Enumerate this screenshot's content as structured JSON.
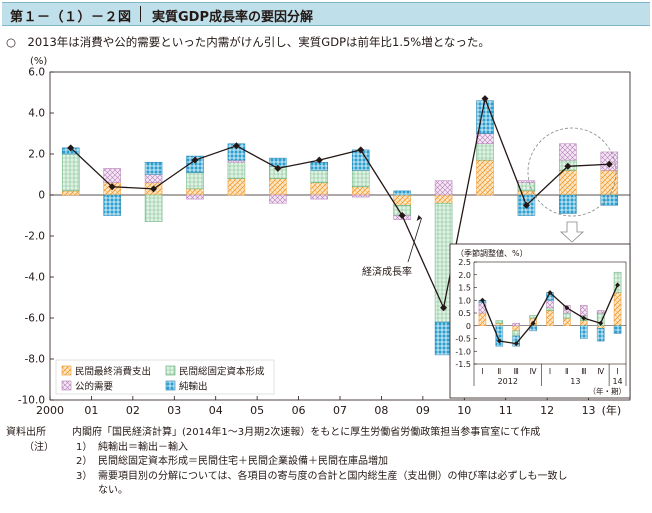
{
  "header": {
    "figure_number": "第１－（１）－２図",
    "title": "実質GDP成長率の要因分解"
  },
  "lead_text": "○　2013年は消費や公的需要といった内需がけん引し、実質GDPは前年比1.5%増となった。",
  "chart_data": [
    {
      "type": "bar",
      "subtype": "stacked-bar-with-line",
      "ylabel": "(%)",
      "xlabel": "(年)",
      "ylim": [
        -10.0,
        6.0
      ],
      "yticks": [
        "6.0",
        "4.0",
        "2.0",
        "0",
        "-2.0",
        "-4.0",
        "-6.0",
        "-8.0",
        "-10.0"
      ],
      "categories": [
        "2000",
        "01",
        "02",
        "03",
        "04",
        "05",
        "06",
        "07",
        "08",
        "09",
        "10",
        "11",
        "12",
        "13"
      ],
      "grid": false,
      "legend_position": "bottom-left",
      "series": [
        {
          "name": "民間最終消費支出",
          "color": "#f29a2e",
          "values": [
            0.2,
            0.6,
            0.6,
            0.3,
            0.8,
            0.8,
            0.6,
            0.4,
            -0.5,
            -0.4,
            1.7,
            0.2,
            1.2,
            1.2
          ]
        },
        {
          "name": "民間総固定資本形成",
          "color": "#5aaa6e",
          "values": [
            1.8,
            0.0,
            -1.3,
            0.8,
            0.8,
            0.6,
            0.6,
            0.8,
            -0.5,
            -5.8,
            0.8,
            0.4,
            0.5,
            0.0
          ]
        },
        {
          "name": "公的需要",
          "color": "#b57fb8",
          "values": [
            0.0,
            0.7,
            0.4,
            -0.2,
            0.1,
            -0.4,
            -0.2,
            -0.1,
            -0.2,
            0.7,
            0.5,
            0.1,
            0.8,
            0.9
          ]
        },
        {
          "name": "純輸出",
          "color": "#2a9fd0",
          "values": [
            0.3,
            -1.0,
            0.6,
            0.8,
            0.8,
            0.4,
            0.4,
            1.0,
            0.2,
            -1.6,
            1.6,
            -1.0,
            -0.9,
            -0.5
          ]
        }
      ],
      "line": {
        "name": "経済成長率",
        "values": [
          2.3,
          0.4,
          0.3,
          1.7,
          2.4,
          1.3,
          1.7,
          2.2,
          -1.0,
          -5.5,
          4.7,
          -0.5,
          1.4,
          1.5
        ]
      }
    },
    {
      "type": "bar",
      "subtype": "stacked-bar-with-line",
      "title": "（季節調整値、%）",
      "ylim": [
        -1.5,
        2.5
      ],
      "yticks": [
        "2.5",
        "2.0",
        "1.5",
        "1.0",
        "0.5",
        "0",
        "-0.5",
        "-1.0",
        "-1.5"
      ],
      "categories": [
        "Ⅰ",
        "Ⅱ",
        "Ⅲ",
        "Ⅳ",
        "Ⅰ",
        "Ⅱ",
        "Ⅲ",
        "Ⅳ",
        "Ⅰ"
      ],
      "year_labels": [
        "2012",
        "13",
        "14"
      ],
      "xlabel": "（年・期）",
      "series": [
        {
          "name": "民間最終消費支出",
          "values": [
            0.5,
            0.1,
            -0.2,
            0.3,
            0.6,
            0.3,
            0.2,
            -0.1,
            1.3
          ]
        },
        {
          "name": "民間総固定資本形成",
          "values": [
            0.0,
            0.1,
            -0.2,
            0.1,
            0.1,
            0.2,
            0.2,
            0.5,
            0.8
          ]
        },
        {
          "name": "公的需要",
          "values": [
            0.4,
            0.0,
            0.1,
            0.0,
            0.3,
            0.3,
            0.4,
            0.1,
            0.0
          ]
        },
        {
          "name": "純輸出",
          "values": [
            0.1,
            -0.8,
            -0.4,
            -0.2,
            0.3,
            0.0,
            -0.5,
            -0.5,
            -0.3
          ]
        }
      ],
      "line": {
        "name": "経済成長率",
        "values": [
          1.0,
          -0.6,
          -0.7,
          0.1,
          1.3,
          0.7,
          0.3,
          0.1,
          1.6
        ]
      }
    }
  ],
  "notes": [
    {
      "key": "資料出所",
      "text": "内閣府「国民経済計算」(2014年1～3月期2次速報）をもとに厚生労働省労働政策担当参事官室にて作成"
    },
    {
      "key": "（注）",
      "num": "1）",
      "text": "純輸出＝輸出－輸入"
    },
    {
      "key": "",
      "num": "2）",
      "text": "民間総固定資本形成＝民間住宅＋民間企業設備＋民間在庫品増加"
    },
    {
      "key": "",
      "num": "3）",
      "text": "需要項目別の分解については、各項目の寄与度の合計と国内総生産（支出側）の伸び率は必ずしも一致し"
    },
    {
      "key": "",
      "num": "",
      "text": "ない。"
    }
  ]
}
